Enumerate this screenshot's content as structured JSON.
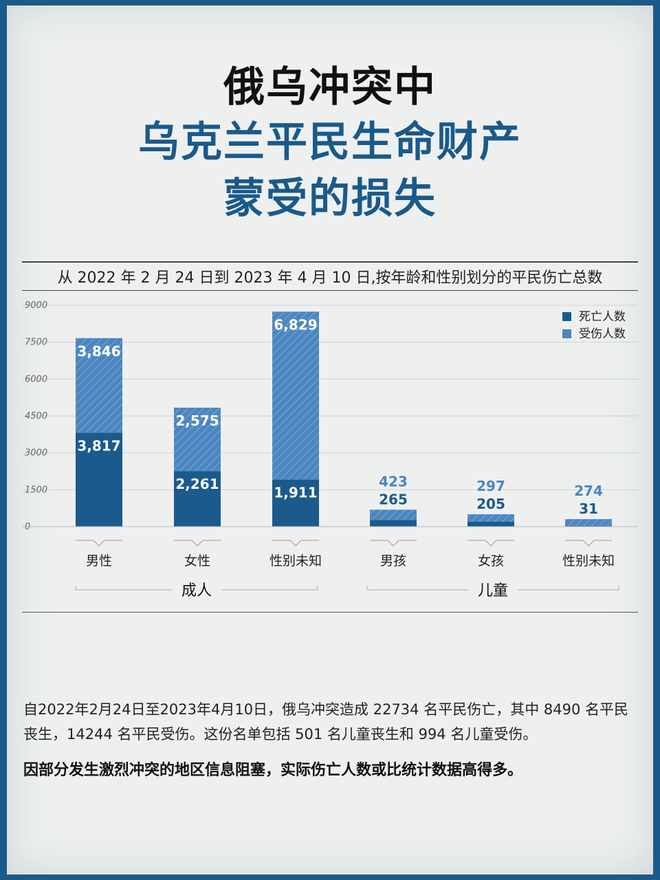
{
  "title": {
    "line1": "俄乌冲突中",
    "line2": "乌克兰平民生命财产",
    "line3": "蒙受的损失"
  },
  "colors": {
    "border": "#1a5a8a",
    "deaths": "#1b5a8c",
    "injured": "#4c86c0",
    "title_accent": "#1a5a8a"
  },
  "chart_data": {
    "type": "bar",
    "stacked": true,
    "title": "从 2022 年 2 月 24 日到 2023 年 4 月 10 日,按年龄和性别划分的平民伤亡总数",
    "categories": [
      "男性",
      "女性",
      "性别未知",
      "男孩",
      "女孩",
      "性别未知"
    ],
    "groups": [
      {
        "label": "成人",
        "categories": [
          "男性",
          "女性",
          "性别未知"
        ]
      },
      {
        "label": "儿童",
        "categories": [
          "男孩",
          "女孩",
          "性别未知"
        ]
      }
    ],
    "series": [
      {
        "name": "死亡人数",
        "values": [
          3817,
          2261,
          1911,
          265,
          205,
          31
        ],
        "labels": [
          "3,817",
          "2,261",
          "1,911",
          "265",
          "205",
          "31"
        ]
      },
      {
        "name": "受伤人数",
        "values": [
          3846,
          2575,
          6829,
          423,
          297,
          274
        ],
        "labels": [
          "3,846",
          "2,575",
          "6,829",
          "423",
          "297",
          "274"
        ]
      }
    ],
    "yticks": [
      "9000",
      "7500",
      "6000",
      "4500",
      "3000",
      "1500",
      "0"
    ],
    "ylim": [
      0,
      9000
    ],
    "grid": true,
    "legend": "top-right"
  },
  "footer": {
    "paragraph1": "自2022年2月24日至2023年4月10日，俄乌冲突造成 22734 名平民伤亡，其中 8490 名平民丧生，14244 名平民受伤。这份名单包括 501 名儿童丧生和 994 名儿童受伤。",
    "paragraph2": "因部分发生激烈冲突的地区信息阻塞，实际伤亡人数或比统计数据高得多。"
  }
}
